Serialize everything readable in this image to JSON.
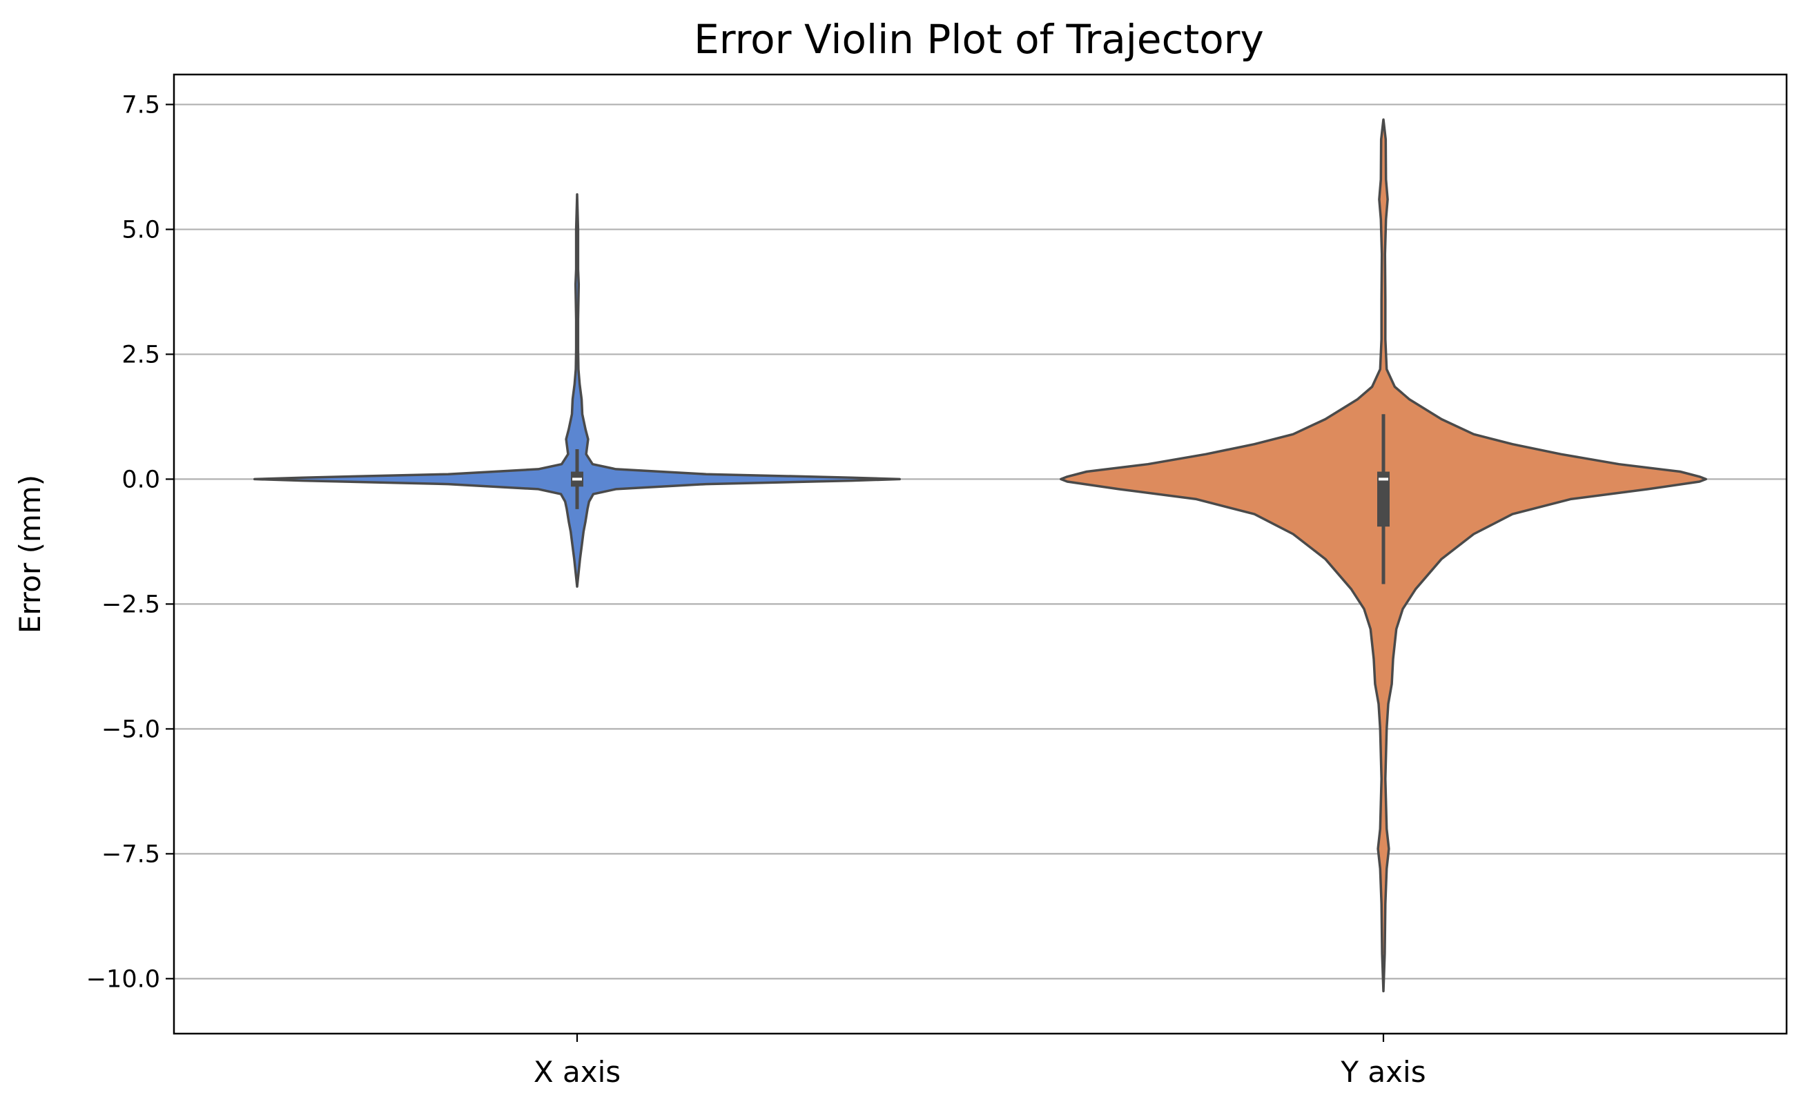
{
  "chart_data": {
    "type": "violin",
    "title": "Error Violin Plot of Trajectory",
    "xlabel": "",
    "ylabel": "Error (mm)",
    "ylim": [
      -11.1,
      8.1
    ],
    "yticks": [
      {
        "value": 7.5,
        "label": "7.5"
      },
      {
        "value": 5.0,
        "label": "5.0"
      },
      {
        "value": 2.5,
        "label": "2.5"
      },
      {
        "value": 0.0,
        "label": "0.0"
      },
      {
        "value": -2.5,
        "label": "−2.5"
      },
      {
        "value": -5.0,
        "label": "−5.0"
      },
      {
        "value": -7.5,
        "label": "−7.5"
      },
      {
        "value": -10.0,
        "label": "−10.0"
      }
    ],
    "grid": "horizontal",
    "categories": [
      "X axis",
      "Y axis"
    ],
    "series": [
      {
        "category": "X axis",
        "color": "#5b86d1",
        "min": -2.15,
        "max": 5.7,
        "q1": -0.15,
        "median": 0.0,
        "q3": 0.15,
        "whisker_low": -0.6,
        "whisker_high": 0.6,
        "density": [
          [
            -2.15,
            0.0
          ],
          [
            -1.9,
            0.004
          ],
          [
            -1.6,
            0.009
          ],
          [
            -1.3,
            0.015
          ],
          [
            -1.05,
            0.02
          ],
          [
            -0.85,
            0.026
          ],
          [
            -0.6,
            0.032
          ],
          [
            -0.45,
            0.037
          ],
          [
            -0.3,
            0.05
          ],
          [
            -0.2,
            0.12
          ],
          [
            -0.1,
            0.4
          ],
          [
            -0.03,
            0.85
          ],
          [
            0.0,
            1.0
          ],
          [
            0.03,
            0.85
          ],
          [
            0.1,
            0.4
          ],
          [
            0.2,
            0.12
          ],
          [
            0.3,
            0.048
          ],
          [
            0.5,
            0.028
          ],
          [
            0.8,
            0.034
          ],
          [
            1.0,
            0.026
          ],
          [
            1.3,
            0.016
          ],
          [
            1.6,
            0.014
          ],
          [
            1.9,
            0.008
          ],
          [
            2.2,
            0.004
          ],
          [
            2.6,
            0.003
          ],
          [
            3.2,
            0.003
          ],
          [
            3.9,
            0.005
          ],
          [
            4.2,
            0.003
          ],
          [
            5.0,
            0.003
          ],
          [
            5.7,
            0.0
          ]
        ]
      },
      {
        "category": "Y axis",
        "color": "#dd8b5d",
        "min": -10.25,
        "max": 7.2,
        "q1": -0.95,
        "median": 0.0,
        "q3": 0.15,
        "whisker_low": -2.1,
        "whisker_high": 1.3,
        "density": [
          [
            -10.25,
            0.0
          ],
          [
            -9.5,
            0.004
          ],
          [
            -8.5,
            0.006
          ],
          [
            -7.8,
            0.01
          ],
          [
            -7.4,
            0.017
          ],
          [
            -7.0,
            0.01
          ],
          [
            -6.0,
            0.006
          ],
          [
            -5.0,
            0.01
          ],
          [
            -4.5,
            0.015
          ],
          [
            -4.1,
            0.026
          ],
          [
            -3.6,
            0.03
          ],
          [
            -3.0,
            0.04
          ],
          [
            -2.6,
            0.06
          ],
          [
            -2.2,
            0.1
          ],
          [
            -1.6,
            0.18
          ],
          [
            -1.1,
            0.28
          ],
          [
            -0.7,
            0.4
          ],
          [
            -0.4,
            0.58
          ],
          [
            -0.2,
            0.82
          ],
          [
            -0.05,
            0.98
          ],
          [
            0.0,
            1.0
          ],
          [
            0.05,
            0.98
          ],
          [
            0.15,
            0.92
          ],
          [
            0.3,
            0.73
          ],
          [
            0.5,
            0.55
          ],
          [
            0.7,
            0.4
          ],
          [
            0.9,
            0.28
          ],
          [
            1.2,
            0.18
          ],
          [
            1.6,
            0.08
          ],
          [
            1.85,
            0.035
          ],
          [
            2.2,
            0.01
          ],
          [
            2.8,
            0.006
          ],
          [
            3.6,
            0.006
          ],
          [
            4.5,
            0.005
          ],
          [
            5.2,
            0.008
          ],
          [
            5.6,
            0.013
          ],
          [
            6.0,
            0.008
          ],
          [
            6.8,
            0.007
          ],
          [
            7.2,
            0.0
          ]
        ]
      }
    ]
  }
}
